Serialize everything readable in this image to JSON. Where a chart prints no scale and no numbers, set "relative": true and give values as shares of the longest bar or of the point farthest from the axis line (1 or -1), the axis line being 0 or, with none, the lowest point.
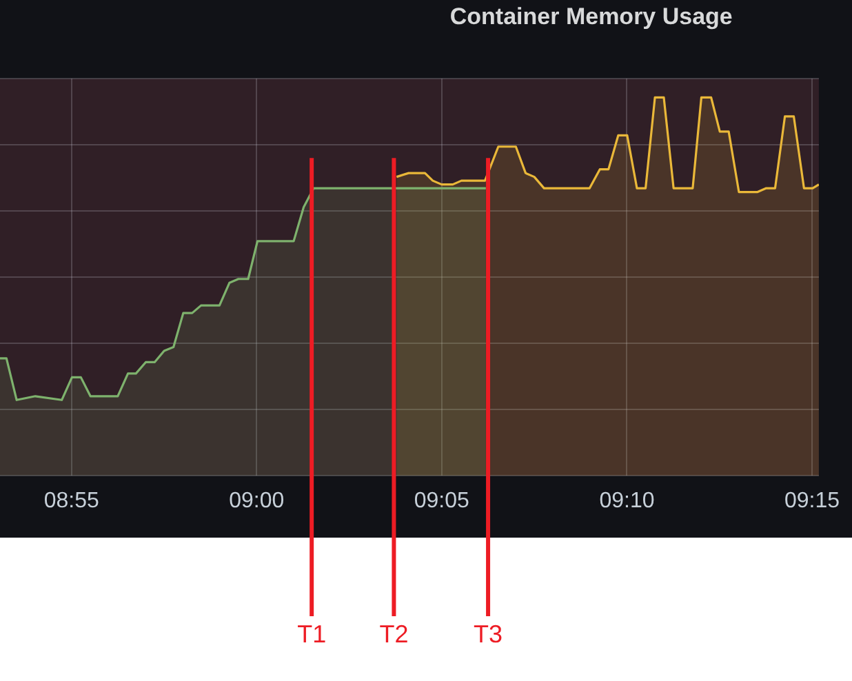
{
  "chart_data": {
    "type": "area",
    "title": "Container Memory Usage",
    "relative": true,
    "grid": true,
    "xlim": [
      8.8845,
      9.2531
    ],
    "xticks": [
      {
        "value": 8.9167,
        "label": "08:55"
      },
      {
        "value": 9,
        "label": "09:00"
      },
      {
        "value": 9.0833,
        "label": "09:05"
      },
      {
        "value": 9.1667,
        "label": "09:10"
      },
      {
        "value": 9.25,
        "label": "09:15"
      }
    ],
    "series": [
      {
        "color": "#7eb26d",
        "x": [
          8.8845,
          8.8874,
          8.892,
          8.9004,
          8.9123,
          8.9169,
          8.9209,
          8.9252,
          8.9302,
          8.9375,
          8.9421,
          8.9457,
          8.9501,
          8.9541,
          8.9584,
          8.9626,
          8.967,
          8.971,
          8.975,
          8.9833,
          8.9878,
          8.9918,
          8.9962,
          9.0004,
          9.0038,
          9.0167,
          9.0212,
          9.0257,
          9.1032
        ],
        "values": [
          0.31,
          0.31,
          0.2,
          0.21,
          0.2,
          0.26,
          0.26,
          0.21,
          0.21,
          0.21,
          0.27,
          0.27,
          0.3,
          0.3,
          0.33,
          0.34,
          0.43,
          0.43,
          0.45,
          0.45,
          0.51,
          0.52,
          0.52,
          0.62,
          0.62,
          0.62,
          0.71,
          0.76,
          0.76
        ]
      },
      {
        "color": "#eab839",
        "x": [
          9.063,
          9.0684,
          9.0724,
          9.0758,
          9.0793,
          9.0833,
          9.0883,
          9.0922,
          9.1028,
          9.1088,
          9.1167,
          9.1211,
          9.125,
          9.1294,
          9.1429,
          9.1459,
          9.1499,
          9.1545,
          9.1584,
          9.1628,
          9.1668,
          9.1712,
          9.1751,
          9.1793,
          9.1833,
          9.1877,
          9.1917,
          9.1963,
          9.2002,
          9.2046,
          9.2085,
          9.2125,
          9.2171,
          9.2255,
          9.2294,
          9.2334,
          9.2378,
          9.2418,
          9.2464,
          9.2503,
          9.2531
        ],
        "values": [
          0.79,
          0.8,
          0.8,
          0.8,
          0.78,
          0.77,
          0.77,
          0.78,
          0.78,
          0.87,
          0.87,
          0.8,
          0.79,
          0.76,
          0.76,
          0.76,
          0.76,
          0.81,
          0.81,
          0.9,
          0.9,
          0.76,
          0.76,
          1,
          1,
          0.76,
          0.76,
          0.76,
          1,
          1,
          0.91,
          0.91,
          0.75,
          0.75,
          0.76,
          0.76,
          0.95,
          0.95,
          0.76,
          0.76,
          0.77
        ]
      }
    ],
    "ref_lines": [
      {
        "axis": "x",
        "value": 9.0248,
        "label": "T1",
        "color": "#ed1c24"
      },
      {
        "axis": "x",
        "value": 9.0618,
        "label": "T2",
        "color": "#ed1c24"
      },
      {
        "axis": "x",
        "value": 9.1042,
        "label": "T3",
        "color": "#ed1c24"
      }
    ]
  }
}
